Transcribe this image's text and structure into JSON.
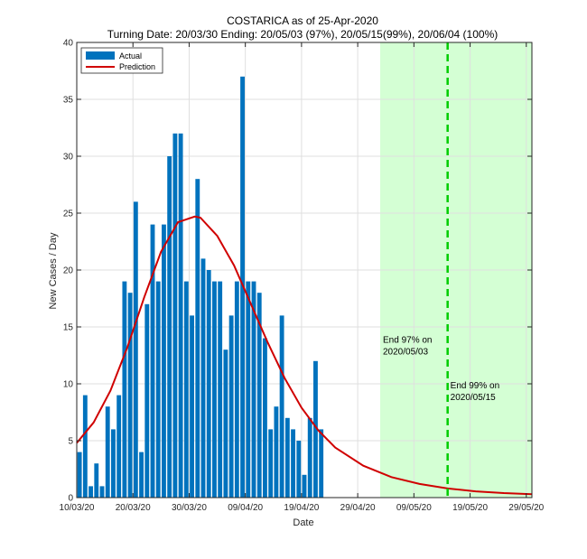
{
  "chart_data": {
    "type": "bar",
    "title": "COSTARICA as of 25-Apr-2020",
    "subtitle": "Turning Date: 20/03/30  Ending: 20/05/03 (97%), 20/05/15(99%), 20/06/04 (100%)",
    "xlabel": "Date",
    "ylabel": "New Cases / Day",
    "x_tick_labels": [
      "10/03/20",
      "20/03/20",
      "30/03/20",
      "09/04/20",
      "19/04/20",
      "29/04/20",
      "09/05/20",
      "19/05/20",
      "29/05/20"
    ],
    "y_tick_labels": [
      "0",
      "5",
      "10",
      "15",
      "20",
      "25",
      "30",
      "35",
      "40"
    ],
    "xlim": [
      "2020-03-10",
      "2020-05-30"
    ],
    "ylim": [
      0,
      40
    ],
    "grid": true,
    "legend_position": "top-left",
    "colors": {
      "actual": "#0072BD",
      "prediction": "#D00000",
      "end_region": "#CCFFCC",
      "end_line": "#00CC00"
    },
    "series": [
      {
        "name": "Actual",
        "kind": "bar",
        "x": [
          "2020-03-10",
          "2020-03-11",
          "2020-03-12",
          "2020-03-13",
          "2020-03-14",
          "2020-03-15",
          "2020-03-16",
          "2020-03-17",
          "2020-03-18",
          "2020-03-19",
          "2020-03-20",
          "2020-03-21",
          "2020-03-22",
          "2020-03-23",
          "2020-03-24",
          "2020-03-25",
          "2020-03-26",
          "2020-03-27",
          "2020-03-28",
          "2020-03-29",
          "2020-03-30",
          "2020-03-31",
          "2020-04-01",
          "2020-04-02",
          "2020-04-03",
          "2020-04-04",
          "2020-04-05",
          "2020-04-06",
          "2020-04-07",
          "2020-04-08",
          "2020-04-09",
          "2020-04-10",
          "2020-04-11",
          "2020-04-12",
          "2020-04-13",
          "2020-04-14",
          "2020-04-15",
          "2020-04-16",
          "2020-04-17",
          "2020-04-18",
          "2020-04-19",
          "2020-04-20",
          "2020-04-21",
          "2020-04-22",
          "2020-04-23",
          "2020-04-24",
          "2020-04-25"
        ],
        "values": [
          4,
          9,
          1,
          3,
          1,
          8,
          6,
          9,
          19,
          18,
          26,
          4,
          17,
          24,
          19,
          24,
          30,
          32,
          32,
          19,
          16,
          28,
          21,
          20,
          19,
          19,
          13,
          16,
          19,
          37,
          19,
          19,
          18,
          14,
          6,
          8,
          16,
          7,
          6,
          5,
          2,
          7,
          12,
          6,
          0,
          0,
          0
        ]
      },
      {
        "name": "Prediction",
        "kind": "line",
        "x": [
          "2020-03-10",
          "2020-03-13",
          "2020-03-16",
          "2020-03-19",
          "2020-03-22",
          "2020-03-25",
          "2020-03-28",
          "2020-03-31",
          "2020-04-01",
          "2020-04-04",
          "2020-04-07",
          "2020-04-10",
          "2020-04-13",
          "2020-04-16",
          "2020-04-19",
          "2020-04-22",
          "2020-04-25",
          "2020-04-30",
          "2020-05-05",
          "2020-05-10",
          "2020-05-15",
          "2020-05-20",
          "2020-05-25",
          "2020-05-30"
        ],
        "values": [
          4.8,
          6.6,
          9.4,
          13.2,
          17.6,
          21.6,
          24.2,
          24.7,
          24.6,
          23.0,
          20.4,
          17.0,
          13.6,
          10.5,
          7.9,
          5.9,
          4.4,
          2.8,
          1.8,
          1.2,
          0.8,
          0.55,
          0.4,
          0.3
        ]
      }
    ],
    "end_region": {
      "from": "2020-05-03",
      "to": "2020-05-30"
    },
    "end_line": {
      "x": "2020-05-15"
    },
    "annotations": [
      {
        "x": "2020-05-03",
        "y": 13.6,
        "lines": [
          "End 97% on",
          "2020/05/03"
        ]
      },
      {
        "x": "2020-05-15",
        "y": 9.6,
        "lines": [
          "End 99% on",
          "2020/05/15"
        ]
      }
    ]
  }
}
